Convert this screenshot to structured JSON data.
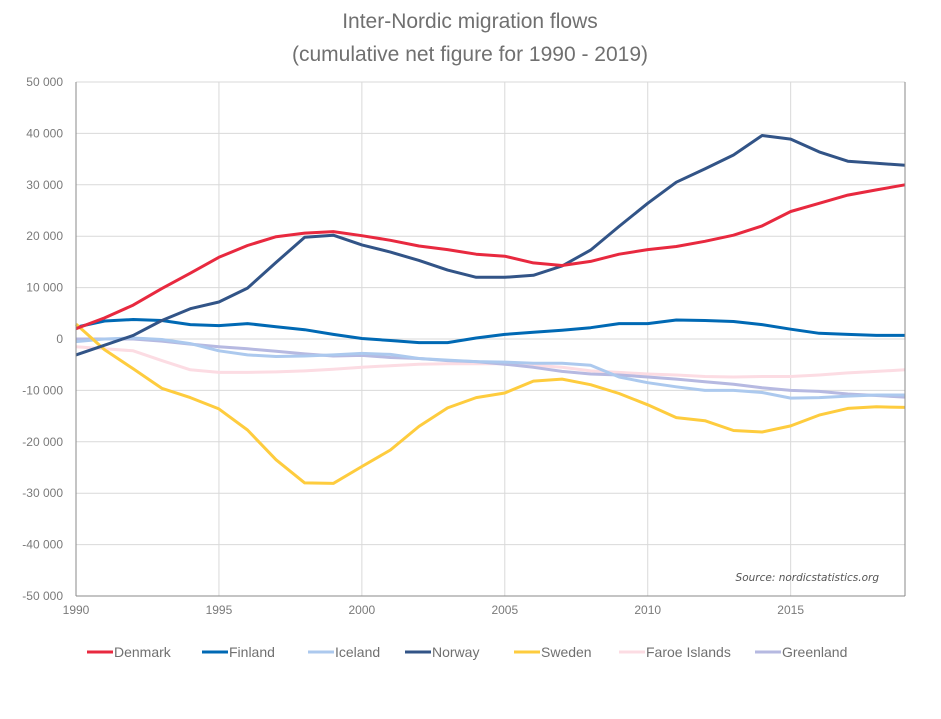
{
  "chart_data": {
    "type": "line",
    "title": "Inter-Nordic migration flows",
    "subtitle": "(cumulative net figure for 1990 - 2019)",
    "xlabel": "",
    "ylabel": "",
    "xlim": [
      1990,
      2019
    ],
    "ylim": [
      -50000,
      50000
    ],
    "grid": true,
    "legend_position": "bottom",
    "x": [
      1990,
      1991,
      1992,
      1993,
      1994,
      1995,
      1996,
      1997,
      1998,
      1999,
      2000,
      2001,
      2002,
      2003,
      2004,
      2005,
      2006,
      2007,
      2008,
      2009,
      2010,
      2011,
      2012,
      2013,
      2014,
      2015,
      2016,
      2017,
      2018,
      2019
    ],
    "x_ticks": [
      1990,
      1995,
      2000,
      2005,
      2010,
      2015
    ],
    "x_tick_labels": [
      "1990",
      "1995",
      "2000",
      "2005",
      "2010",
      "2015"
    ],
    "y_ticks": [
      50000,
      40000,
      30000,
      20000,
      10000,
      0,
      -10000,
      -20000,
      -30000,
      -40000,
      -50000
    ],
    "y_tick_labels": [
      "50 000",
      "40 000",
      "30 000",
      "20 000",
      "10 000",
      "0",
      "-10 000",
      "-20 000",
      "-30 000",
      "-40 000",
      "-50 000"
    ],
    "annotation": "Source:  nordicstatistics.org",
    "series": [
      {
        "name": "Denmark",
        "color": "#e8293f",
        "values": [
          2000,
          4100,
          6600,
          9800,
          12800,
          15900,
          18200,
          19900,
          20600,
          20900,
          20100,
          19200,
          18100,
          17400,
          16500,
          16100,
          14800,
          14300,
          15100,
          16500,
          17400,
          18000,
          19000,
          20200,
          22000,
          24800,
          26400,
          28000,
          29000,
          30000
        ]
      },
      {
        "name": "Finland",
        "color": "#0069b4",
        "values": [
          2300,
          3500,
          3800,
          3600,
          2800,
          2600,
          3000,
          2400,
          1800,
          900,
          100,
          -300,
          -700,
          -700,
          200,
          900,
          1300,
          1700,
          2200,
          3000,
          3000,
          3700,
          3600,
          3400,
          2800,
          1900,
          1100,
          900,
          700,
          700
        ]
      },
      {
        "name": "Iceland",
        "color": "#acc9ee",
        "values": [
          -500,
          0,
          200,
          -100,
          -900,
          -2300,
          -3100,
          -3400,
          -3300,
          -3100,
          -2800,
          -3000,
          -3800,
          -4100,
          -4400,
          -4500,
          -4700,
          -4700,
          -5100,
          -7400,
          -8500,
          -9300,
          -10000,
          -10000,
          -10400,
          -11500,
          -11400,
          -11100,
          -10900,
          -10900
        ]
      },
      {
        "name": "Norway",
        "color": "#325487",
        "values": [
          -3100,
          -1200,
          700,
          3600,
          5900,
          7200,
          9900,
          14900,
          19800,
          20200,
          18300,
          16900,
          15300,
          13400,
          12000,
          12000,
          12400,
          14200,
          17300,
          21900,
          26400,
          30500,
          33100,
          35800,
          39600,
          38900,
          36400,
          34600,
          34200,
          33800
        ]
      },
      {
        "name": "Sweden",
        "color": "#fecc3e",
        "values": [
          2900,
          -2100,
          -5800,
          -9600,
          -11400,
          -13600,
          -17700,
          -23500,
          -28000,
          -28100,
          -24800,
          -21600,
          -17000,
          -13400,
          -11400,
          -10500,
          -8200,
          -7800,
          -8900,
          -10600,
          -12800,
          -15300,
          -15900,
          -17800,
          -18100,
          -16900,
          -14800,
          -13500,
          -13200,
          -13300
        ]
      },
      {
        "name": "Faroe Islands",
        "color": "#fcdce3",
        "values": [
          -1500,
          -1900,
          -2300,
          -4200,
          -6000,
          -6500,
          -6500,
          -6400,
          -6200,
          -5900,
          -5500,
          -5200,
          -4900,
          -4800,
          -4800,
          -4800,
          -5100,
          -5500,
          -6200,
          -6500,
          -6800,
          -7000,
          -7300,
          -7400,
          -7300,
          -7300,
          -7000,
          -6600,
          -6300,
          -6000
        ]
      },
      {
        "name": "Greenland",
        "color": "#b6b9e1",
        "values": [
          0,
          0,
          0,
          -400,
          -1000,
          -1500,
          -1900,
          -2400,
          -2900,
          -3300,
          -3200,
          -3600,
          -3800,
          -4200,
          -4400,
          -4900,
          -5500,
          -6300,
          -6800,
          -7000,
          -7400,
          -7800,
          -8300,
          -8800,
          -9500,
          -10000,
          -10200,
          -10700,
          -11000,
          -11300
        ]
      }
    ]
  }
}
